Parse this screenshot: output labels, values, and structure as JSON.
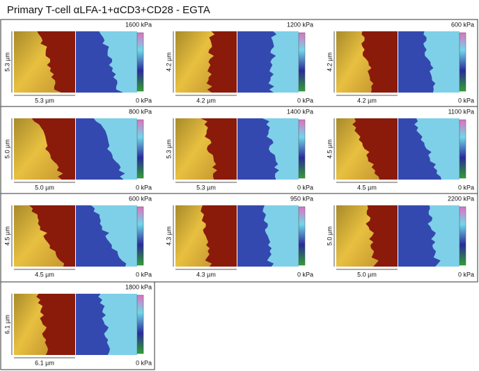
{
  "title": "Primary T-cell αLFA-1+αCD3+CD28 - EGTA",
  "panels": [
    {
      "size": "5.3 µm",
      "max": "1600 kPa",
      "min": "0 kPa"
    },
    {
      "size": "4.2 µm",
      "max": "1200 kPa",
      "min": "0 kPa"
    },
    {
      "size": "4.2 µm",
      "max": "600 kPa",
      "min": "0 kPa"
    },
    {
      "size": "5.0 µm",
      "max": "800 kPa",
      "min": "0 kPa"
    },
    {
      "size": "5.3 µm",
      "max": "1400 kPa",
      "min": "0 kPa"
    },
    {
      "size": "4.5 µm",
      "max": "1100 kPa",
      "min": "0 kPa"
    },
    {
      "size": "4.5 µm",
      "max": "600 kPa",
      "min": "0 kPa"
    },
    {
      "size": "4.3 µm",
      "max": "950 kPa",
      "min": "0 kPa"
    },
    {
      "size": "5.0 µm",
      "max": "2200 kPa",
      "min": "0 kPa"
    },
    {
      "size": "6.1 µm",
      "max": "1800 kPa",
      "min": "0 kPa"
    }
  ]
}
